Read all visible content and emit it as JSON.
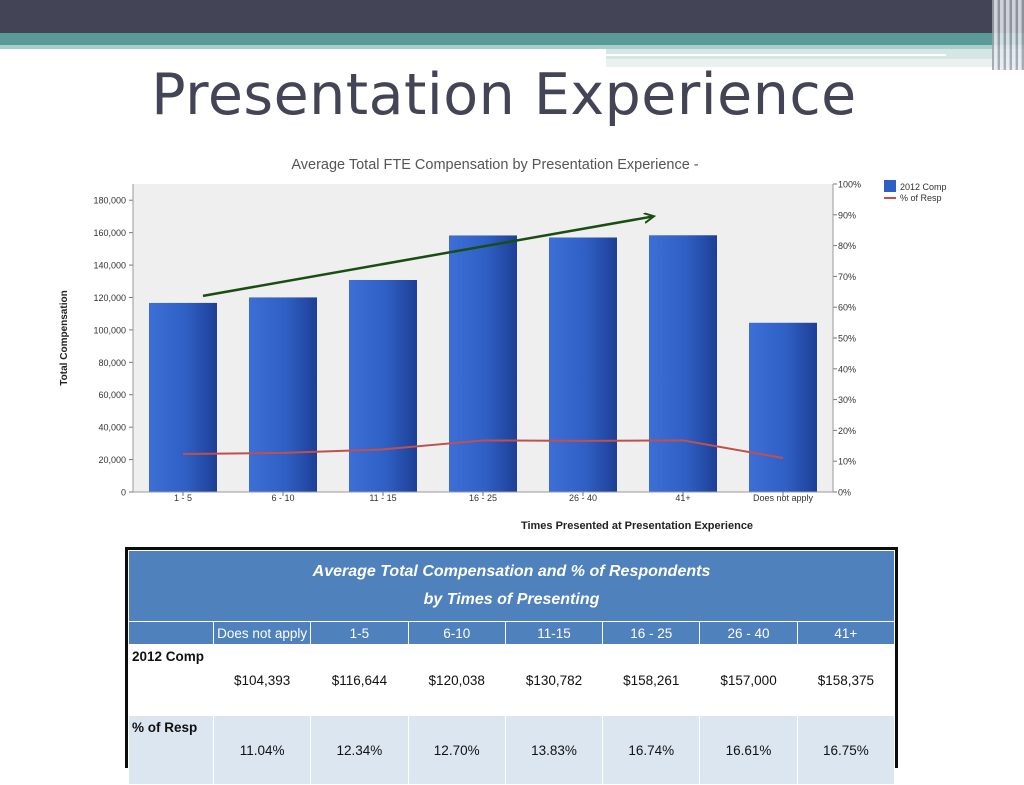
{
  "slide": {
    "title": "Presentation Experience"
  },
  "colors": {
    "bar": "#2f5fc4",
    "line": "#c0504d",
    "arrow": "#1a4d12",
    "table_header": "#4f81bd",
    "table_band": "#dce6f1"
  },
  "chart_data": {
    "type": "bar",
    "title": "Average Total FTE Compensation by Presentation Experience -",
    "xlabel": "Times Presented at  Presentation Experience",
    "ylabel": "Total Compensation",
    "categories": [
      "1 - 5",
      "6 - 10",
      "11 - 15",
      "16 - 25",
      "26 - 40",
      "41+",
      "Does not apply"
    ],
    "series": [
      {
        "name": "2012 Comp",
        "type": "bar",
        "axis": "left",
        "values": [
          116644,
          120038,
          130782,
          158261,
          157000,
          158375,
          104393
        ]
      },
      {
        "name": "% of Resp",
        "type": "line",
        "axis": "right",
        "values": [
          12.34,
          12.7,
          13.83,
          16.74,
          16.61,
          16.75,
          11.04
        ]
      }
    ],
    "ylim": [
      0,
      190000
    ],
    "yticks": [
      0,
      20000,
      40000,
      60000,
      80000,
      100000,
      120000,
      140000,
      160000,
      180000
    ],
    "ytick_labels": [
      "0",
      "20,000",
      "40,000",
      "60,000",
      "80,000",
      "100,000",
      "120,000",
      "140,000",
      "160,000",
      "180,000"
    ],
    "y2lim": [
      0,
      100
    ],
    "y2ticks": [
      0,
      10,
      20,
      30,
      40,
      50,
      60,
      70,
      80,
      90,
      100
    ],
    "y2tick_labels": [
      "0%",
      "10%",
      "20%",
      "30%",
      "40%",
      "50%",
      "60%",
      "70%",
      "80%",
      "90%",
      "100%"
    ],
    "legend": {
      "placement": "top-right",
      "entries": [
        "2012 Comp",
        "% of Resp"
      ]
    },
    "annotation": {
      "type": "arrow",
      "direction": "upward trend",
      "from_y": 121000,
      "to_y": 170000
    },
    "grid": false
  },
  "table": {
    "title_line1": "Average Total Compensation and % of Respondents",
    "title_line2": "by Times of Presenting",
    "columns": [
      "Does not apply",
      "1-5",
      "6-10",
      "11-15",
      "16 - 25",
      "26 - 40",
      "41+"
    ],
    "rows": [
      {
        "label": "2012 Comp",
        "values": [
          "$104,393",
          "$116,644",
          "$120,038",
          "$130,782",
          "$158,261",
          "$157,000",
          "$158,375"
        ]
      },
      {
        "label": "% of Resp",
        "values": [
          "11.04%",
          "12.34%",
          "12.70%",
          "13.83%",
          "16.74%",
          "16.61%",
          "16.75%"
        ]
      }
    ]
  }
}
